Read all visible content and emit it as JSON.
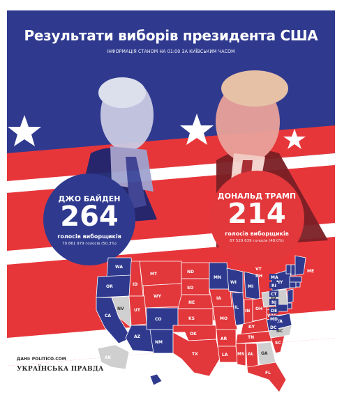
{
  "title": "Результати виборів президента США",
  "subtitle": "ІНФОРМАЦІЯ СТАНОМ НА 01:00 ЗА КИЇВСЬКИМ ЧАСОМ",
  "biden": {
    "name": "ДЖО БАЙДЕН",
    "electoral_votes": "264",
    "label": "голосів виборщиків",
    "popular": "70 861 979 голосів (50.3%)",
    "color": "#2f3a8f"
  },
  "trump": {
    "name": "ДОНАЛЬД ТРАМП",
    "electoral_votes": "214",
    "label": "голосів виборщиків",
    "popular": "67 529 639 голосів (48.0%)",
    "color": "#e2373b"
  },
  "source": "ДАНІ: POLITICO.COM",
  "brand": "УКРАЇНСЬКА ПРАВДА",
  "map_colors": {
    "dem": "#2f3a8f",
    "rep": "#e2373b",
    "undecided": "#cfcfcf"
  },
  "states": {
    "WA": "WA",
    "OR": "OR",
    "CA": "CA",
    "NV": "NV",
    "ID": "ID",
    "MT": "MT",
    "WY": "WY",
    "UT": "UT",
    "AZ": "AZ",
    "CO": "CO",
    "NM": "NM",
    "ND": "ND",
    "SD": "SD",
    "NE": "NE",
    "KS": "KS",
    "OK": "OK",
    "TX": "TX",
    "MN": "MN",
    "IA": "IA",
    "MO": "MO",
    "AR": "AR",
    "LA": "LA",
    "WI": "WI",
    "IL": "IL",
    "MI": "MI",
    "IN": "IN",
    "OH": "OH",
    "KY": "KY",
    "TN": "TN",
    "MS": "MS",
    "AL": "AL",
    "GA": "GA",
    "FL": "FL",
    "SC": "SC",
    "NC": "NC",
    "VA": "VA",
    "WV": "WV",
    "PA": "PA",
    "NY": "NY",
    "VT": "VT",
    "NH": "NH",
    "ME": "ME",
    "MA": "MA",
    "RI": "RI",
    "CT": "CT",
    "NJ": "NJ",
    "DE": "DE",
    "MD": "MD",
    "DC": "DC",
    "AK": "AK",
    "HI": "HI"
  }
}
